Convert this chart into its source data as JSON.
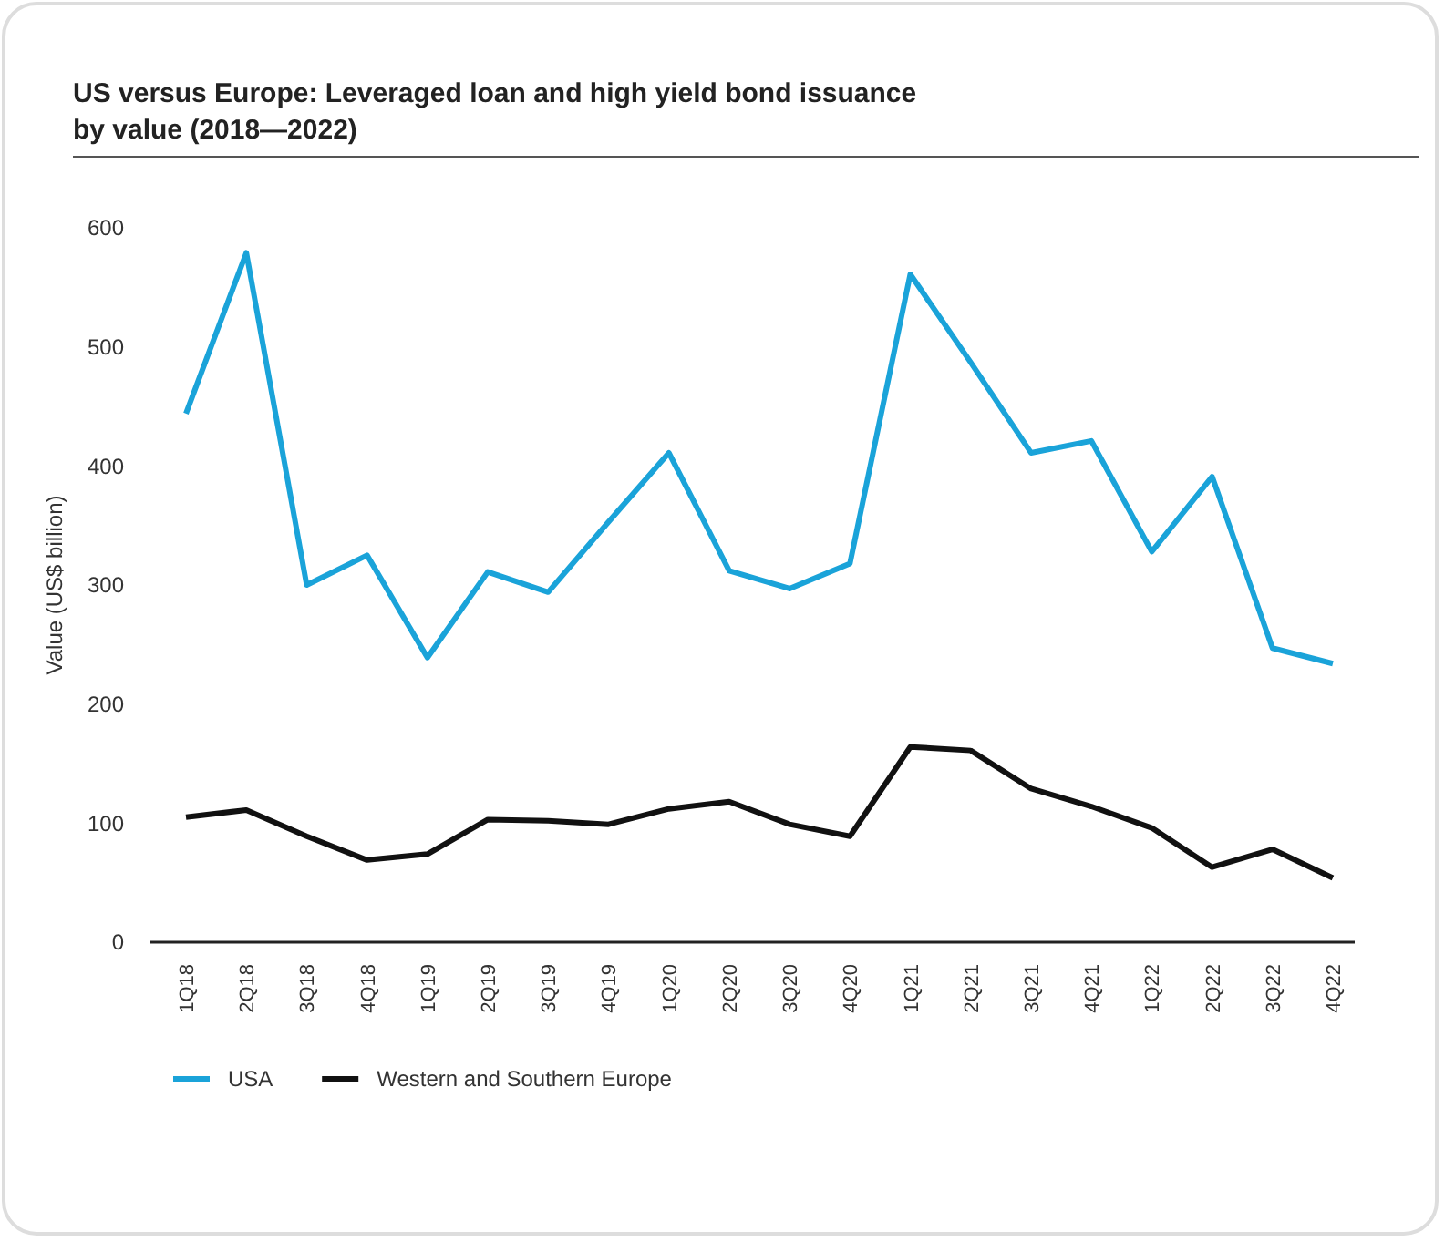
{
  "chart_data": {
    "type": "line",
    "title": "US versus Europe: Leveraged loan and high yield bond issuance by value (2018—2022)",
    "ylabel": "Value (US$ billion)",
    "categories": [
      "1Q18",
      "2Q18",
      "3Q18",
      "4Q18",
      "1Q19",
      "2Q19",
      "3Q19",
      "4Q19",
      "1Q20",
      "2Q20",
      "3Q20",
      "4Q20",
      "1Q21",
      "2Q21",
      "3Q21",
      "4Q21",
      "1Q22",
      "2Q22",
      "3Q22",
      "4Q22"
    ],
    "series": [
      {
        "name": "USA",
        "color": "#1aa3d9",
        "values": [
          444,
          579,
          300,
          325,
          239,
          311,
          294,
          353,
          411,
          312,
          297,
          318,
          561,
          487,
          411,
          421,
          328,
          391,
          247,
          234
        ]
      },
      {
        "name": "Western and Southern Europe",
        "color": "#111111",
        "values": [
          105,
          111,
          89,
          69,
          74,
          103,
          102,
          99,
          112,
          118,
          99,
          89,
          164,
          161,
          129,
          114,
          96,
          63,
          78,
          54
        ]
      }
    ],
    "ylim": [
      0,
      600
    ],
    "yticks": [
      0,
      100,
      200,
      300,
      400,
      500,
      600
    ],
    "grid": false,
    "legend": "bottom",
    "marker": "none",
    "line_style": "solid"
  }
}
